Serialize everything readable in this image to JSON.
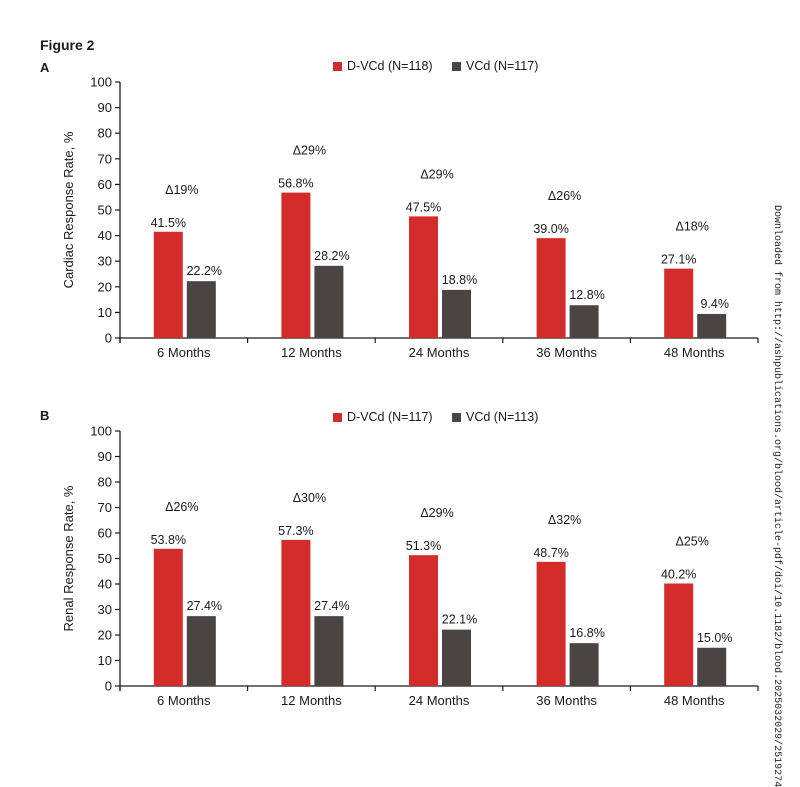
{
  "figure_title": "Figure 2",
  "side_note": "Downloaded from http://ashpublications.org/blood/article-pdf/doi/10.1182/blood.2025032029/2519274",
  "colors": {
    "d_vcd": "#d42b2b",
    "vcd": "#4a4543",
    "axis": "#1a1a1a"
  },
  "chart_data": [
    {
      "type": "bar",
      "panel": "A",
      "ylabel": "Cardiac Response Rate, %",
      "ylim": [
        0,
        100
      ],
      "yticks": [
        0,
        10,
        20,
        30,
        40,
        50,
        60,
        70,
        80,
        90,
        100
      ],
      "categories": [
        "6 Months",
        "12 Months",
        "24 Months",
        "36 Months",
        "48 Months"
      ],
      "series": [
        {
          "name": "D-VCd (N=118)",
          "values": [
            41.5,
            56.8,
            47.5,
            39.0,
            27.1
          ],
          "labels": [
            "41.5%",
            "56.8%",
            "47.5%",
            "39.0%",
            "27.1%"
          ]
        },
        {
          "name": "VCd (N=117)",
          "values": [
            22.2,
            28.2,
            18.8,
            12.8,
            9.4
          ],
          "labels": [
            "22.2%",
            "28.2%",
            "18.8%",
            "12.8%",
            "9.4%"
          ]
        }
      ],
      "deltas": [
        "Δ19%",
        "Δ29%",
        "Δ29%",
        "Δ26%",
        "Δ18%"
      ],
      "delta_values": [
        19,
        29,
        29,
        26,
        18
      ],
      "legend": "top-center",
      "grid": false
    },
    {
      "type": "bar",
      "panel": "B",
      "ylabel": "Renal Response Rate, %",
      "ylim": [
        0,
        100
      ],
      "yticks": [
        0,
        10,
        20,
        30,
        40,
        50,
        60,
        70,
        80,
        90,
        100
      ],
      "categories": [
        "6 Months",
        "12 Months",
        "24 Months",
        "36 Months",
        "48 Months"
      ],
      "series": [
        {
          "name": "D-VCd (N=117)",
          "values": [
            53.8,
            57.3,
            51.3,
            48.7,
            40.2
          ],
          "labels": [
            "53.8%",
            "57.3%",
            "51.3%",
            "48.7%",
            "40.2%"
          ]
        },
        {
          "name": "VCd (N=113)",
          "values": [
            27.4,
            27.4,
            22.1,
            16.8,
            15.0
          ],
          "labels": [
            "27.4%",
            "27.4%",
            "22.1%",
            "16.8%",
            "15.0%"
          ]
        }
      ],
      "deltas": [
        "Δ26%",
        "Δ30%",
        "Δ29%",
        "Δ32%",
        "Δ25%"
      ],
      "delta_values": [
        26,
        30,
        29,
        32,
        25
      ],
      "legend": "top-center",
      "grid": false
    }
  ]
}
